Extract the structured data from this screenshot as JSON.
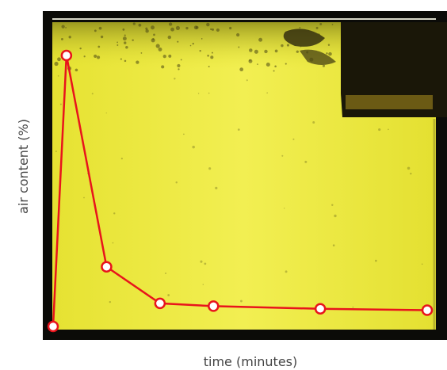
{
  "chart_data": {
    "type": "line",
    "title": "",
    "xlabel": "time (minutes)",
    "ylabel": "air content (%)",
    "x_tick_labels": [],
    "y_tick_labels": [],
    "ylim": [
      0,
      100
    ],
    "grid": false,
    "legend": "none",
    "series": [
      {
        "x": [
          0,
          1,
          4,
          8,
          12,
          20,
          28
        ],
        "y": [
          0,
          100,
          22,
          8.5,
          7.5,
          6.5,
          6
        ],
        "color": "#e8141c"
      }
    ],
    "background_photo": "yellow-oil-with-bubbles"
  },
  "colors": {
    "frame": "#0b0b08",
    "oil": "#e9e836",
    "oil_light": "#f2f05a",
    "line": "#e8141c",
    "marker_fill": "#ffffff",
    "label": "#444444"
  }
}
